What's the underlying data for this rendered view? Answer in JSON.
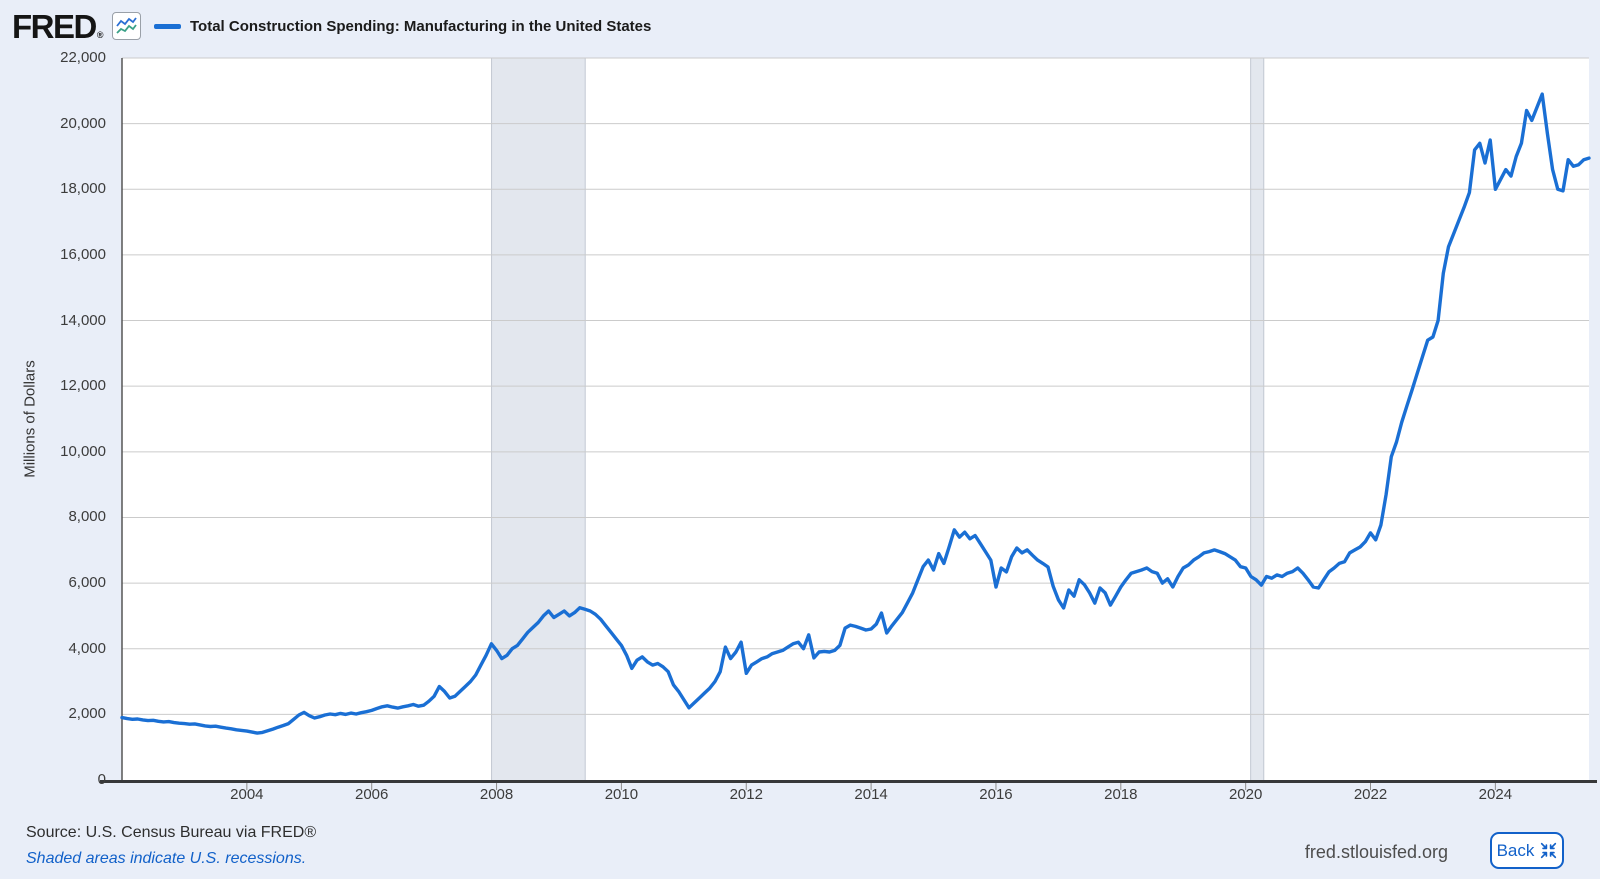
{
  "header": {
    "logo_text": "FRED",
    "logo_mark": "®",
    "series_label": "Total Construction Spending: Manufacturing in the United States"
  },
  "chart_data": {
    "type": "line",
    "title": "Total Construction Spending: Manufacturing in the United States",
    "ylabel": "Millions of Dollars",
    "frequency": "monthly",
    "start": "2002-01",
    "end": "2025-07",
    "ylim": [
      0,
      22000
    ],
    "y_ticks": [
      0,
      2000,
      4000,
      6000,
      8000,
      10000,
      12000,
      14000,
      16000,
      18000,
      20000,
      22000
    ],
    "x_tick_years": [
      2004,
      2006,
      2008,
      2010,
      2012,
      2014,
      2016,
      2018,
      2020,
      2022,
      2024
    ],
    "grid": "horizontal",
    "legend_position": "top-left",
    "line_color": "#1a6fd4",
    "recession_color": "#e3e7ee",
    "recession_edge_color": "#c2c8d2",
    "recession_bands": [
      {
        "start_year": 2007.92,
        "end_year": 2009.42
      },
      {
        "start_year": 2020.08,
        "end_year": 2020.29
      }
    ],
    "values": [
      1900,
      1870,
      1850,
      1860,
      1830,
      1810,
      1820,
      1790,
      1770,
      1780,
      1750,
      1730,
      1720,
      1700,
      1710,
      1680,
      1650,
      1630,
      1640,
      1610,
      1580,
      1560,
      1530,
      1510,
      1490,
      1460,
      1430,
      1450,
      1500,
      1550,
      1610,
      1660,
      1720,
      1850,
      1980,
      2060,
      1960,
      1890,
      1930,
      1980,
      2010,
      1990,
      2030,
      2000,
      2040,
      2010,
      2050,
      2080,
      2120,
      2180,
      2230,
      2260,
      2220,
      2190,
      2230,
      2260,
      2300,
      2250,
      2280,
      2400,
      2550,
      2850,
      2700,
      2500,
      2550,
      2700,
      2850,
      3000,
      3200,
      3500,
      3800,
      4150,
      3950,
      3700,
      3800,
      4000,
      4100,
      4300,
      4500,
      4650,
      4800,
      5000,
      5150,
      4950,
      5050,
      5150,
      5000,
      5100,
      5250,
      5200,
      5150,
      5050,
      4900,
      4700,
      4500,
      4300,
      4100,
      3800,
      3400,
      3650,
      3750,
      3600,
      3500,
      3550,
      3450,
      3300,
      2900,
      2700,
      2450,
      2200,
      2350,
      2500,
      2650,
      2800,
      3000,
      3300,
      4050,
      3700,
      3900,
      4200,
      3250,
      3500,
      3600,
      3700,
      3750,
      3850,
      3900,
      3950,
      4050,
      4150,
      4200,
      4000,
      4420,
      3720,
      3900,
      3920,
      3900,
      3950,
      4100,
      4630,
      4720,
      4680,
      4630,
      4570,
      4600,
      4750,
      5090,
      4480,
      4700,
      4900,
      5100,
      5400,
      5700,
      6100,
      6500,
      6700,
      6400,
      6900,
      6600,
      7100,
      7620,
      7400,
      7550,
      7350,
      7450,
      7200,
      6950,
      6700,
      5880,
      6460,
      6340,
      6800,
      7070,
      6920,
      7010,
      6850,
      6700,
      6600,
      6490,
      5900,
      5490,
      5240,
      5790,
      5600,
      6100,
      5950,
      5700,
      5390,
      5850,
      5700,
      5330,
      5600,
      5880,
      6100,
      6300,
      6350,
      6400,
      6460,
      6350,
      6300,
      6000,
      6130,
      5880,
      6200,
      6460,
      6550,
      6700,
      6800,
      6920,
      6960,
      7010,
      6960,
      6900,
      6800,
      6700,
      6500,
      6460,
      6200,
      6100,
      5940,
      6200,
      6150,
      6250,
      6200,
      6300,
      6350,
      6460,
      6300,
      6100,
      5880,
      5850,
      6100,
      6340,
      6460,
      6600,
      6650,
      6920,
      7010,
      7100,
      7260,
      7530,
      7320,
      7770,
      8700,
      9850,
      10300,
      10900,
      11400,
      11890,
      12400,
      12900,
      13400,
      13500,
      14000,
      15440,
      16250,
      16650,
      17050,
      17450,
      17900,
      19200,
      19400,
      18800,
      19500,
      18000,
      18300,
      18600,
      18400,
      19000,
      19400,
      20400,
      20100,
      20500,
      20900,
      19700,
      18600,
      18000,
      17950,
      18900,
      18700,
      18750,
      18900,
      18950
    ]
  },
  "footer": {
    "source": "Source: U.S. Census Bureau via FRED®",
    "note": "Shaded areas indicate U.S. recessions.",
    "site": "fred.stlouisfed.org",
    "back_label": "Back"
  }
}
